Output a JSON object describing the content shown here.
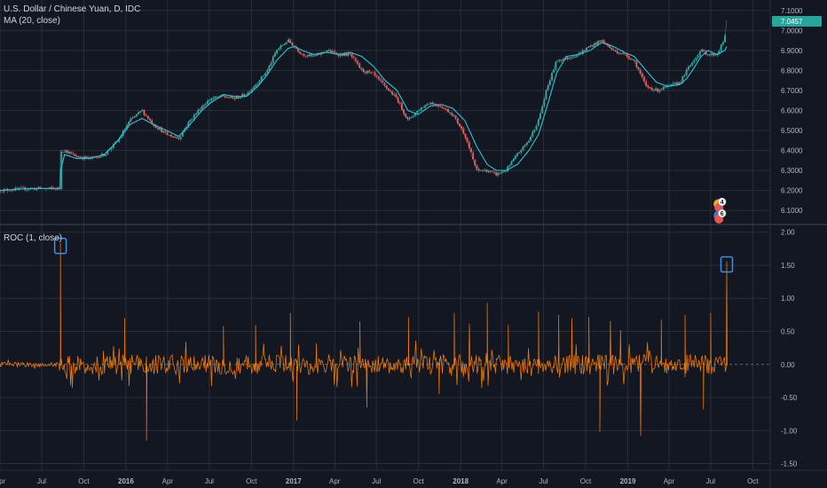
{
  "header": {
    "symbol_title": "U.S. Dollar / Chinese Yuan, D, IDC",
    "ma_label": "MA (20, close)",
    "roc_label": "ROC (1, close)"
  },
  "colors": {
    "background": "#131722",
    "grid": "#2a2e39",
    "text": "#b2b5be",
    "candle_up": "#26a69a",
    "candle_down": "#ef5350",
    "ma_line": "#26c6da",
    "roc_line": "#f57c00",
    "price_badge": "#26a69a",
    "highlight_box": "#3d8fe0"
  },
  "chart_data": [
    {
      "type": "line",
      "panel": "price",
      "series": [
        {
          "name": "MA (20, close)",
          "x": [
            "2015-04-01",
            "2015-06-01",
            "2015-08-10",
            "2015-08-11",
            "2015-08-20",
            "2015-09-15",
            "2015-10-15",
            "2015-11-15",
            "2015-12-15",
            "2016-01-10",
            "2016-02-05",
            "2016-03-01",
            "2016-03-30",
            "2016-04-25",
            "2016-05-20",
            "2016-06-15",
            "2016-07-05",
            "2016-08-01",
            "2016-08-25",
            "2016-09-20",
            "2016-10-15",
            "2016-11-05",
            "2016-11-25",
            "2016-12-20",
            "2017-01-03",
            "2017-01-20",
            "2017-02-15",
            "2017-03-15",
            "2017-04-10",
            "2017-05-05",
            "2017-05-30",
            "2017-06-25",
            "2017-07-20",
            "2017-08-15",
            "2017-09-08",
            "2017-09-30",
            "2017-10-25",
            "2017-11-20",
            "2017-12-15",
            "2018-01-10",
            "2018-02-05",
            "2018-02-28",
            "2018-03-20",
            "2018-04-10",
            "2018-05-05",
            "2018-05-30",
            "2018-06-20",
            "2018-07-10",
            "2018-07-30",
            "2018-08-20",
            "2018-09-15",
            "2018-10-10",
            "2018-11-05",
            "2018-11-30",
            "2018-12-25",
            "2019-01-15",
            "2019-02-10",
            "2019-03-05",
            "2019-03-30",
            "2019-04-25",
            "2019-05-10",
            "2019-05-25",
            "2019-06-10",
            "2019-06-25",
            "2019-07-15",
            "2019-08-01",
            "2019-08-05"
          ],
          "values": [
            6.2,
            6.21,
            6.21,
            6.3,
            6.38,
            6.36,
            6.36,
            6.38,
            6.45,
            6.53,
            6.56,
            6.53,
            6.5,
            6.47,
            6.53,
            6.6,
            6.64,
            6.68,
            6.67,
            6.67,
            6.72,
            6.78,
            6.85,
            6.91,
            6.92,
            6.9,
            6.88,
            6.89,
            6.88,
            6.89,
            6.87,
            6.82,
            6.75,
            6.7,
            6.6,
            6.58,
            6.62,
            6.63,
            6.61,
            6.55,
            6.42,
            6.33,
            6.3,
            6.3,
            6.33,
            6.4,
            6.48,
            6.63,
            6.79,
            6.87,
            6.88,
            6.9,
            6.94,
            6.92,
            6.89,
            6.87,
            6.8,
            6.74,
            6.72,
            6.73,
            6.76,
            6.81,
            6.87,
            6.9,
            6.88,
            6.9,
            6.92
          ]
        },
        {
          "name": "U.S. Dollar / Chinese Yuan",
          "x": [
            "2015-04-01",
            "2015-06-01",
            "2015-08-10",
            "2015-08-11",
            "2015-08-20",
            "2015-09-15",
            "2015-10-15",
            "2015-11-15",
            "2015-12-15",
            "2016-01-10",
            "2016-02-05",
            "2016-03-01",
            "2016-03-30",
            "2016-04-25",
            "2016-05-20",
            "2016-06-15",
            "2016-07-05",
            "2016-08-01",
            "2016-08-25",
            "2016-09-20",
            "2016-10-15",
            "2016-11-05",
            "2016-11-25",
            "2016-12-20",
            "2017-01-03",
            "2017-01-20",
            "2017-02-15",
            "2017-03-15",
            "2017-04-10",
            "2017-05-05",
            "2017-05-30",
            "2017-06-25",
            "2017-07-20",
            "2017-08-15",
            "2017-09-08",
            "2017-09-30",
            "2017-10-25",
            "2017-11-20",
            "2017-12-15",
            "2018-01-10",
            "2018-02-05",
            "2018-02-28",
            "2018-03-20",
            "2018-04-10",
            "2018-05-05",
            "2018-05-30",
            "2018-06-20",
            "2018-07-10",
            "2018-07-30",
            "2018-08-20",
            "2018-09-15",
            "2018-10-10",
            "2018-11-05",
            "2018-11-30",
            "2018-12-25",
            "2019-01-15",
            "2019-02-10",
            "2019-03-05",
            "2019-03-30",
            "2019-04-25",
            "2019-05-10",
            "2019-05-25",
            "2019-06-10",
            "2019-06-25",
            "2019-07-15",
            "2019-08-01",
            "2019-08-05"
          ],
          "values": [
            6.2,
            6.21,
            6.21,
            6.4,
            6.4,
            6.37,
            6.36,
            6.38,
            6.45,
            6.55,
            6.6,
            6.53,
            6.48,
            6.46,
            6.55,
            6.62,
            6.66,
            6.67,
            6.66,
            6.68,
            6.74,
            6.8,
            6.9,
            6.95,
            6.92,
            6.88,
            6.87,
            6.9,
            6.88,
            6.88,
            6.8,
            6.78,
            6.72,
            6.66,
            6.55,
            6.6,
            6.64,
            6.62,
            6.58,
            6.48,
            6.3,
            6.3,
            6.28,
            6.3,
            6.38,
            6.45,
            6.55,
            6.72,
            6.85,
            6.86,
            6.88,
            6.92,
            6.95,
            6.9,
            6.88,
            6.85,
            6.72,
            6.7,
            6.72,
            6.74,
            6.8,
            6.85,
            6.9,
            6.88,
            6.88,
            6.96,
            7.05
          ]
        }
      ],
      "xlim": [
        "2015-04-01",
        "2019-11-08"
      ],
      "ylim": [
        6.03,
        7.13
      ],
      "y_ticks": [
        "6.1000",
        "6.2000",
        "6.3000",
        "6.4000",
        "6.5000",
        "6.6000",
        "6.7000",
        "6.8000",
        "6.9000",
        "7.0000",
        "7.1000"
      ],
      "last_price_label": "7.0457",
      "grid": true
    },
    {
      "type": "line",
      "panel": "indicator",
      "series": [
        {
          "name": "ROC (1, close)",
          "x": [
            "2015-04-01",
            "2015-08-11",
            "2015-12-29",
            "2016-02-15",
            "2016-08-01",
            "2016-10-10",
            "2016-12-25",
            "2017-01-08",
            "2017-02-20",
            "2017-05-26",
            "2017-06-10",
            "2017-09-09",
            "2017-11-15",
            "2017-12-18",
            "2018-01-20",
            "2018-02-28",
            "2018-04-15",
            "2018-06-20",
            "2018-08-03",
            "2018-09-01",
            "2018-10-08",
            "2018-11-01",
            "2018-11-24",
            "2018-12-16",
            "2019-01-29",
            "2019-03-15",
            "2019-05-06",
            "2019-06-15",
            "2019-07-01",
            "2019-08-05"
          ],
          "values": [
            0.0,
            1.84,
            0.7,
            -1.15,
            0.58,
            0.6,
            0.78,
            -0.85,
            0.32,
            0.65,
            -0.65,
            0.72,
            -0.45,
            0.78,
            0.62,
            0.93,
            0.6,
            0.8,
            0.75,
            0.7,
            0.72,
            -1.02,
            0.66,
            0.52,
            -1.08,
            0.68,
            0.75,
            -0.68,
            0.78,
            1.56
          ]
        }
      ],
      "xlim": [
        "2015-04-01",
        "2019-11-08"
      ],
      "ylim": [
        -1.6,
        2.05
      ],
      "y_ticks": [
        "-1.50",
        "-1.00",
        "-0.50",
        "0.00",
        "0.50",
        "1.00",
        "1.50",
        "2.00"
      ],
      "zero_line": "dashed",
      "highlighted_values": [
        1.84,
        1.56
      ],
      "grid": true
    }
  ],
  "x_axis": {
    "ticks": [
      {
        "label": "Apr",
        "date": "2015-04-01"
      },
      {
        "label": "Jul",
        "date": "2015-07-01"
      },
      {
        "label": "Oct",
        "date": "2015-10-01"
      },
      {
        "label": "2016",
        "date": "2016-01-01"
      },
      {
        "label": "Apr",
        "date": "2016-04-01"
      },
      {
        "label": "Jul",
        "date": "2016-07-01"
      },
      {
        "label": "Oct",
        "date": "2016-10-01"
      },
      {
        "label": "2017",
        "date": "2017-01-01"
      },
      {
        "label": "Apr",
        "date": "2017-04-01"
      },
      {
        "label": "Jul",
        "date": "2017-07-01"
      },
      {
        "label": "Oct",
        "date": "2017-10-01"
      },
      {
        "label": "2018",
        "date": "2018-01-01"
      },
      {
        "label": "Apr",
        "date": "2018-04-01"
      },
      {
        "label": "Jul",
        "date": "2018-07-01"
      },
      {
        "label": "Oct",
        "date": "2018-10-01"
      },
      {
        "label": "2019",
        "date": "2019-01-01"
      },
      {
        "label": "Apr",
        "date": "2019-04-01"
      },
      {
        "label": "Jul",
        "date": "2019-07-01"
      },
      {
        "label": "Oct",
        "date": "2019-10-01"
      }
    ]
  },
  "event_markers": [
    {
      "label": "4",
      "icon": "earnings-flag-icon"
    },
    {
      "label": "6",
      "icon": "earnings-flag-icon"
    }
  ]
}
